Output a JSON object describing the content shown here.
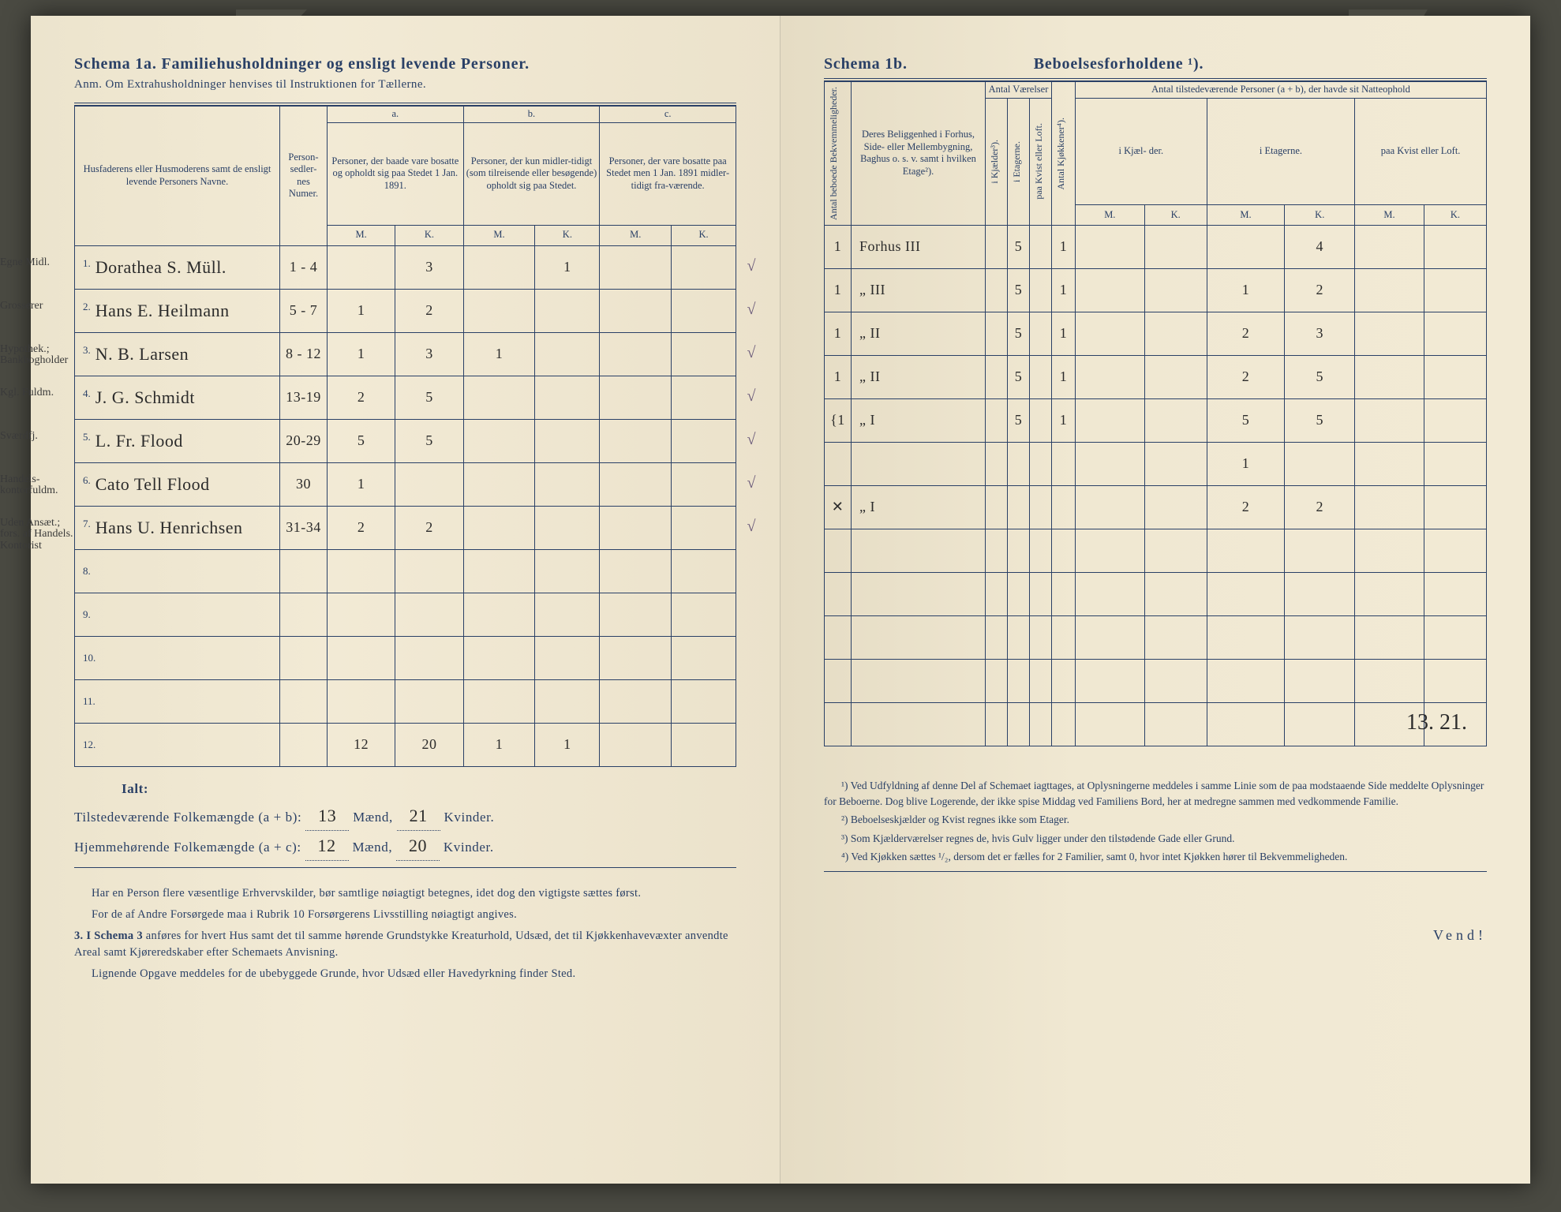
{
  "colors": {
    "print": "#2a4066",
    "ink": "#2b2b2b",
    "paper": "#f2ead5",
    "background": "#4a4a42"
  },
  "typography": {
    "print_font": "Georgia, Times New Roman, serif",
    "handwriting_font": "Brush Script MT, Segoe Script, cursive",
    "title_size_pt": 15,
    "body_size_pt": 11,
    "handwriting_size_pt": 16
  },
  "left": {
    "title": "Schema 1a.  Familiehusholdninger og ensligt levende Personer.",
    "subtitle": "Anm.  Om Extrahusholdninger henvises til Instruktionen for Tællerne.",
    "headers": {
      "names": "Husfaderens eller Husmoderens samt de ensligt levende Personers Navne.",
      "personsedler": "Person-\nsedler-\nnes\nNumer.",
      "col_a_label": "a.",
      "col_a": "Personer, der baade vare bosatte og opholdt sig paa Stedet 1 Jan. 1891.",
      "col_b_label": "b.",
      "col_b": "Personer, der kun midler-tidigt (som tilreisende eller besøgende) opholdt sig paa Stedet.",
      "col_c_label": "c.",
      "col_c": "Personer, der vare bosatte paa Stedet men 1 Jan. 1891 midler-tidigt fra-værende.",
      "m": "M.",
      "k": "K."
    },
    "rows": [
      {
        "n": "1.",
        "prefix": "Egne Midl.",
        "name": "Dorathea S. Müll.",
        "num": "1 - 4",
        "aM": "",
        "aK": "3",
        "bM": "",
        "bK": "1",
        "cM": "",
        "cK": "",
        "check": "√"
      },
      {
        "n": "2.",
        "prefix": "Grosserer",
        "name": "Hans E. Heilmann",
        "num": "5 - 7",
        "aM": "1",
        "aK": "2",
        "bM": "",
        "bK": "",
        "cM": "",
        "cK": "",
        "check": "√"
      },
      {
        "n": "3.",
        "prefix": "Hypothek.; Bankbogholder",
        "name": "N. B. Larsen",
        "num": "8 - 12",
        "aM": "1",
        "aK": "3",
        "bM": "1",
        "bK": "",
        "cM": "",
        "cK": "",
        "check": "√"
      },
      {
        "n": "4.",
        "prefix": "Kgl. Fuldm.",
        "name": "J. G. Schmidt",
        "num": "13-19",
        "aM": "2",
        "aK": "5",
        "bM": "",
        "bK": "",
        "cM": "",
        "cK": "",
        "check": "√"
      },
      {
        "n": "5.",
        "prefix": "Sværdfj.",
        "name": "L. Fr. Flood",
        "num": "20-29",
        "aM": "5",
        "aK": "5",
        "bM": "",
        "bK": "",
        "cM": "",
        "cK": "",
        "check": "√"
      },
      {
        "n": "6.",
        "prefix": "Handels-kontorfuldm.",
        "name": "Cato Tell Flood",
        "num": "30",
        "aM": "1",
        "aK": "",
        "bM": "",
        "bK": "",
        "cM": "",
        "cK": "",
        "check": "√"
      },
      {
        "n": "7.",
        "prefix": "Uden Ansæt.; fors. af Handels. Kontorist",
        "name": "Hans U. Henrichsen",
        "num": "31-34",
        "aM": "2",
        "aK": "2",
        "bM": "",
        "bK": "",
        "cM": "",
        "cK": "",
        "check": "√"
      },
      {
        "n": "8.",
        "prefix": "",
        "name": "",
        "num": "",
        "aM": "",
        "aK": "",
        "bM": "",
        "bK": "",
        "cM": "",
        "cK": "",
        "check": ""
      },
      {
        "n": "9.",
        "prefix": "",
        "name": "",
        "num": "",
        "aM": "",
        "aK": "",
        "bM": "",
        "bK": "",
        "cM": "",
        "cK": "",
        "check": ""
      },
      {
        "n": "10.",
        "prefix": "",
        "name": "",
        "num": "",
        "aM": "",
        "aK": "",
        "bM": "",
        "bK": "",
        "cM": "",
        "cK": "",
        "check": ""
      },
      {
        "n": "11.",
        "prefix": "",
        "name": "",
        "num": "",
        "aM": "",
        "aK": "",
        "bM": "",
        "bK": "",
        "cM": "",
        "cK": "",
        "check": ""
      },
      {
        "n": "12.",
        "prefix": "",
        "name": "",
        "num": "",
        "aM": "12",
        "aK": "20",
        "bM": "1",
        "bK": "1",
        "cM": "",
        "cK": "",
        "check": ""
      }
    ],
    "totals": {
      "ialt": "Ialt:",
      "line1_pre": "Tilstedeværende Folkemængde (a + b):",
      "line1_m": "13",
      "line1_mid": "Mænd,",
      "line1_k": "21",
      "line1_end": "Kvinder.",
      "line2_pre": "Hjemmehørende Folkemængde (a + c):",
      "line2_m": "12",
      "line2_mid": "Mænd,",
      "line2_k": "20",
      "line2_end": "Kvinder."
    },
    "notes": [
      "Har en Person flere væsentlige Erhvervskilder, bør samtlige nøiagtigt betegnes, idet dog den vigtigste sættes først.",
      "For de af Andre Forsørgede maa i Rubrik 10 Forsørgerens Livsstilling nøiagtigt angives.",
      "3. I Schema 3 anføres for hvert Hus samt det til samme hørende Grundstykke Kreaturhold, Udsæd, det til Kjøkkenhavevæxter anvendte Areal samt Kjøreredskaber efter Schemaets Anvisning.",
      "Lignende Opgave meddeles for de ubebyggede Grunde, hvor Udsæd eller Havedyrkning finder Sted."
    ]
  },
  "right": {
    "title_a": "Schema 1b.",
    "title_b": "Beboelsesforholdene ¹).",
    "headers": {
      "antal_bekv": "Antal beboede Bekvemmeligheder.",
      "beliggenhed": "Deres Beliggenhed i Forhus, Side- eller Mellembygning, Baghus o. s. v. samt i hvilken Etage²).",
      "antal_vaer": "Antal Værelser",
      "kjael": "i Kjælder³).",
      "etag_v": "i Etagerne.",
      "kvist": "paa Kvist eller Loft.",
      "kjokken": "Antal Kjøkkener⁴).",
      "natteophold": "Antal tilstedeværende Personer (a + b), der havde sit Natteophold",
      "n_kjael": "i Kjæl-\nder.",
      "n_etag": "i\nEtagerne.",
      "n_kvist": "paa\nKvist\neller\nLoft.",
      "m": "M.",
      "k": "K."
    },
    "rows": [
      {
        "bekv": "1",
        "bel": "Forhus  III",
        "vk": "",
        "ve": "5",
        "vkv": "",
        "kj": "1",
        "nkM": "",
        "nkK": "",
        "neM": "",
        "neK": "4",
        "nkvM": "",
        "nkvK": ""
      },
      {
        "bekv": "1",
        "bel": "„      III",
        "vk": "",
        "ve": "5",
        "vkv": "",
        "kj": "1",
        "nkM": "",
        "nkK": "",
        "neM": "1",
        "neK": "2",
        "nkvM": "",
        "nkvK": ""
      },
      {
        "bekv": "1",
        "bel": "„      II",
        "vk": "",
        "ve": "5",
        "vkv": "",
        "kj": "1",
        "nkM": "",
        "nkK": "",
        "neM": "2",
        "neK": "3",
        "nkvM": "",
        "nkvK": ""
      },
      {
        "bekv": "1",
        "bel": "„      II",
        "vk": "",
        "ve": "5",
        "vkv": "",
        "kj": "1",
        "nkM": "",
        "nkK": "",
        "neM": "2",
        "neK": "5",
        "nkvM": "",
        "nkvK": ""
      },
      {
        "bekv": "{1",
        "bel": "„      I",
        "vk": "",
        "ve": "5",
        "vkv": "",
        "kj": "1",
        "nkM": "",
        "nkK": "",
        "neM": "5",
        "neK": "5",
        "nkvM": "",
        "nkvK": ""
      },
      {
        "bekv": "",
        "bel": "",
        "vk": "",
        "ve": "",
        "vkv": "",
        "kj": "",
        "nkM": "",
        "nkK": "",
        "neM": "1",
        "neK": "",
        "nkvM": "",
        "nkvK": ""
      },
      {
        "bekv": "✕",
        "bel": "„      I",
        "vk": "",
        "ve": "",
        "vkv": "",
        "kj": "",
        "nkM": "",
        "nkK": "",
        "neM": "2",
        "neK": "2",
        "nkvM": "",
        "nkvK": ""
      },
      {
        "bekv": "",
        "bel": "",
        "vk": "",
        "ve": "",
        "vkv": "",
        "kj": "",
        "nkM": "",
        "nkK": "",
        "neM": "",
        "neK": "",
        "nkvM": "",
        "nkvK": ""
      },
      {
        "bekv": "",
        "bel": "",
        "vk": "",
        "ve": "",
        "vkv": "",
        "kj": "",
        "nkM": "",
        "nkK": "",
        "neM": "",
        "neK": "",
        "nkvM": "",
        "nkvK": ""
      },
      {
        "bekv": "",
        "bel": "",
        "vk": "",
        "ve": "",
        "vkv": "",
        "kj": "",
        "nkM": "",
        "nkK": "",
        "neM": "",
        "neK": "",
        "nkvM": "",
        "nkvK": ""
      },
      {
        "bekv": "",
        "bel": "",
        "vk": "",
        "ve": "",
        "vkv": "",
        "kj": "",
        "nkM": "",
        "nkK": "",
        "neM": "",
        "neK": "",
        "nkvM": "",
        "nkvK": ""
      },
      {
        "bekv": "",
        "bel": "",
        "vk": "",
        "ve": "",
        "vkv": "",
        "kj": "",
        "nkM": "",
        "nkK": "",
        "neM": "",
        "neK": "",
        "nkvM": "",
        "nkvK": ""
      }
    ],
    "annotation": "13. 21.",
    "footnotes": [
      "¹) Ved Udfyldning af denne Del af Schemaet iagttages, at Oplysningerne meddeles i samme Linie som de paa modstaaende Side meddelte Oplysninger for Beboerne. Dog blive Logerende, der ikke spise Middag ved Familiens Bord, her at medregne sammen med vedkommende Familie.",
      "²) Beboelseskjælder og Kvist regnes ikke som Etager.",
      "³) Som Kjælderværelser regnes de, hvis Gulv ligger under den tilstødende Gade eller Grund.",
      "⁴) Ved Kjøkken sættes ¹/₂, dersom det er fælles for 2 Familier, samt 0, hvor intet Kjøkken hører til Bekvemmeligheden."
    ],
    "vend": "Vend!"
  }
}
